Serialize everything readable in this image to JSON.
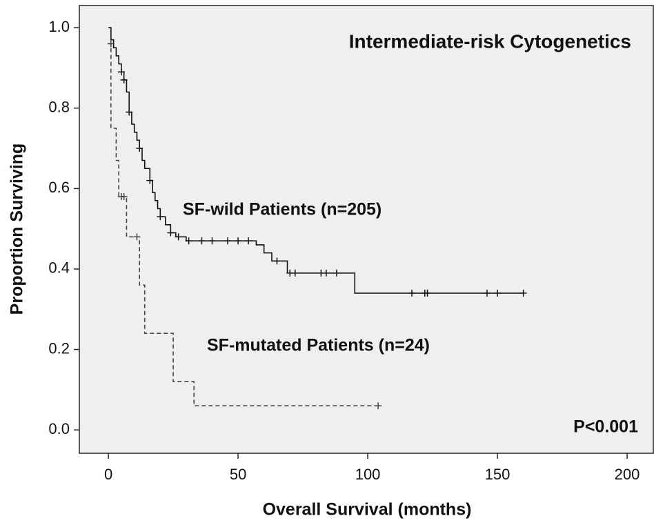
{
  "chart_data": {
    "type": "kaplan-meier",
    "title": "Intermediate-risk Cytogenetics",
    "x_label": "Overall Survival (months)",
    "y_label": "Proportion Surviving",
    "annotation": "P<0.001",
    "xlim": [
      -11.2,
      210.1
    ],
    "ylim": [
      -0.058,
      1.055
    ],
    "xticks": [
      0,
      50,
      100,
      150,
      200
    ],
    "yticks": [
      {
        "value": 0,
        "label": "0.0"
      },
      0.2,
      0.4,
      0.6,
      0.8,
      {
        "value": 1,
        "label": "1.0"
      }
    ],
    "series": [
      {
        "name": "SF-wild Patients (n=205)",
        "color": "#111111",
        "dash": false,
        "x": [
          0,
          1,
          2,
          3,
          4,
          5,
          6,
          7,
          8,
          9,
          10,
          11,
          12,
          13,
          14,
          16,
          17,
          18,
          19,
          20,
          22,
          24,
          26,
          30,
          57,
          60,
          63,
          69,
          95,
          160
        ],
        "values": [
          1.0,
          0.97,
          0.95,
          0.93,
          0.91,
          0.89,
          0.87,
          0.84,
          0.79,
          0.76,
          0.74,
          0.72,
          0.7,
          0.67,
          0.65,
          0.62,
          0.59,
          0.57,
          0.55,
          0.53,
          0.51,
          0.49,
          0.48,
          0.47,
          0.46,
          0.44,
          0.42,
          0.39,
          0.34,
          0.34
        ],
        "censored_x": [
          5,
          6,
          8,
          12,
          16,
          20,
          24,
          27,
          31,
          36,
          40,
          46,
          50,
          54,
          65,
          70,
          72,
          82,
          84,
          88,
          117,
          122,
          123,
          146,
          150,
          160
        ],
        "censored_values": [
          0.89,
          0.87,
          0.79,
          0.7,
          0.62,
          0.53,
          0.49,
          0.48,
          0.47,
          0.47,
          0.47,
          0.47,
          0.47,
          0.47,
          0.42,
          0.39,
          0.39,
          0.39,
          0.39,
          0.39,
          0.34,
          0.34,
          0.34,
          0.34,
          0.34,
          0.34
        ]
      },
      {
        "name": "SF-mutated Patients (n=24)",
        "color": "#444444",
        "dash": true,
        "x": [
          0,
          1,
          3,
          4,
          7,
          12,
          14,
          25,
          33,
          104
        ],
        "values": [
          0.96,
          0.75,
          0.67,
          0.58,
          0.48,
          0.36,
          0.24,
          0.12,
          0.06,
          0.06
        ],
        "censored_x": [
          1,
          5,
          6,
          11,
          104
        ],
        "censored_values": [
          0.96,
          0.58,
          0.58,
          0.48,
          0.06
        ]
      }
    ]
  }
}
